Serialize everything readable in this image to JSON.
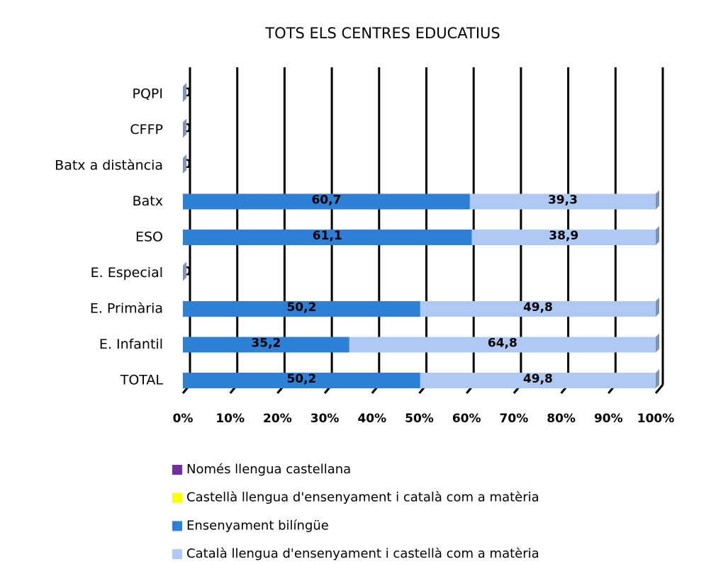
{
  "chart_data": {
    "type": "stacked-bar-horizontal",
    "title": "TOTS ELS CENTRES EDUCATIUS",
    "categories": [
      "PQPI",
      "CFFP",
      "Batx a distància",
      "Batx",
      "ESO",
      "E. Especial",
      "E. Primària",
      "E. Infantil",
      "TOTAL"
    ],
    "series": [
      {
        "name": "Només llengua castellana",
        "color": "#7030a0",
        "values": [
          0,
          0,
          0,
          0,
          0,
          0,
          0,
          0,
          0
        ]
      },
      {
        "name": "Castellà llengua d'ensenyament i català com a matèria",
        "color": "#ffff00",
        "values": [
          0,
          0,
          0,
          0,
          0,
          0,
          0,
          0,
          0
        ]
      },
      {
        "name": "Ensenyament bilíngüe",
        "color": "#2e7fd6",
        "values": [
          0,
          0,
          0,
          60.7,
          61.1,
          0,
          50.2,
          35.2,
          50.2
        ],
        "value_labels": [
          "0",
          "0",
          "0",
          "60,7",
          "61,1",
          "0",
          "50,2",
          "35,2",
          "50,2"
        ]
      },
      {
        "name": "Català llengua d'ensenyament i castellà com a matèria",
        "color": "#afc9f5",
        "values": [
          0,
          0,
          0,
          39.3,
          38.9,
          0,
          49.8,
          64.8,
          49.8
        ],
        "value_labels": [
          "0",
          "0",
          "0",
          "39,3",
          "38,9",
          "0",
          "49,8",
          "64,8",
          "49,8"
        ]
      }
    ],
    "xlim": [
      0,
      100
    ],
    "xticks": [
      {
        "value": 0,
        "label": "0%"
      },
      {
        "value": 10,
        "label": "10%"
      },
      {
        "value": 20,
        "label": "20%"
      },
      {
        "value": 30,
        "label": "30%"
      },
      {
        "value": 40,
        "label": "40%"
      },
      {
        "value": 50,
        "label": "50%"
      },
      {
        "value": 60,
        "label": "60%"
      },
      {
        "value": 70,
        "label": "70%"
      },
      {
        "value": 80,
        "label": "80%"
      },
      {
        "value": 90,
        "label": "90%"
      },
      {
        "value": 100,
        "label": "100%"
      }
    ],
    "grid": true
  }
}
